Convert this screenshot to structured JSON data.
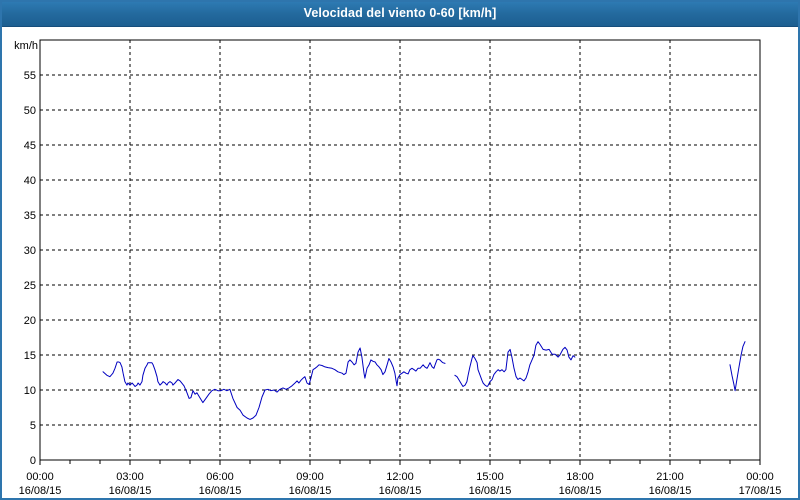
{
  "window": {
    "title": "Velocidad del viento 0-60 [km/h]"
  },
  "colors": {
    "titlebar_bg": "#1f6397",
    "titlebar_text": "#ffffff",
    "frame_border": "#2e75ad",
    "plot_border": "#000000",
    "grid": "#000000",
    "series_line": "#0000c0",
    "label_text": "#000000",
    "background": "#ffffff"
  },
  "chart_data": {
    "type": "line",
    "title": "Velocidad del viento 0-60 [km/h]",
    "ylabel": "km/h",
    "ylim": [
      0,
      60
    ],
    "ytick_step": 5,
    "ytick_labels": [
      "0",
      "5",
      "10",
      "15",
      "20",
      "25",
      "30",
      "35",
      "40",
      "45",
      "50",
      "55"
    ],
    "x_hours_range": [
      0,
      24
    ],
    "x_major_step_hours": 3,
    "x_minor_step_hours": 1,
    "x_tick_labels": [
      {
        "time": "00:00",
        "date": "16/08/15"
      },
      {
        "time": "03:00",
        "date": "16/08/15"
      },
      {
        "time": "06:00",
        "date": "16/08/15"
      },
      {
        "time": "09:00",
        "date": "16/08/15"
      },
      {
        "time": "12:00",
        "date": "16/08/15"
      },
      {
        "time": "15:00",
        "date": "16/08/15"
      },
      {
        "time": "18:00",
        "date": "16/08/15"
      },
      {
        "time": "21:00",
        "date": "16/08/15"
      },
      {
        "time": "00:00",
        "date": "17/08/15"
      }
    ],
    "grid": "dashed",
    "legend": "none",
    "series": [
      {
        "name": "Velocidad del viento",
        "color": "#0000c0",
        "points_format": [
          "hour_decimal",
          "km_per_h"
        ],
        "segments": [
          [
            [
              2.1,
              12.6
            ],
            [
              2.23,
              12.1
            ],
            [
              2.33,
              11.9
            ],
            [
              2.43,
              12.4
            ],
            [
              2.5,
              13.1
            ],
            [
              2.57,
              14.0
            ],
            [
              2.63,
              14.0
            ],
            [
              2.67,
              13.9
            ],
            [
              2.73,
              13.3
            ],
            [
              2.77,
              12.4
            ],
            [
              2.83,
              11.2
            ],
            [
              2.9,
              10.7
            ],
            [
              2.93,
              11.0
            ],
            [
              3.0,
              10.7
            ],
            [
              3.07,
              11.0
            ],
            [
              3.13,
              10.7
            ],
            [
              3.17,
              10.5
            ],
            [
              3.23,
              10.7
            ],
            [
              3.27,
              11.0
            ],
            [
              3.33,
              10.7
            ],
            [
              3.4,
              11.2
            ],
            [
              3.43,
              12.1
            ],
            [
              3.5,
              13.1
            ],
            [
              3.57,
              13.6
            ],
            [
              3.6,
              13.9
            ],
            [
              3.67,
              13.9
            ],
            [
              3.73,
              13.9
            ],
            [
              3.77,
              13.6
            ],
            [
              3.83,
              12.9
            ],
            [
              3.9,
              11.9
            ],
            [
              3.93,
              11.2
            ],
            [
              4.0,
              10.7
            ],
            [
              4.07,
              11.0
            ],
            [
              4.1,
              11.2
            ],
            [
              4.17,
              11.0
            ],
            [
              4.23,
              10.7
            ],
            [
              4.27,
              11.0
            ],
            [
              4.33,
              11.2
            ],
            [
              4.4,
              11.0
            ],
            [
              4.43,
              10.7
            ],
            [
              4.5,
              11.0
            ],
            [
              4.6,
              11.5
            ],
            [
              4.67,
              11.3
            ],
            [
              4.8,
              10.6
            ],
            [
              4.9,
              9.6
            ],
            [
              4.97,
              8.8
            ],
            [
              5.03,
              8.9
            ],
            [
              5.1,
              9.9
            ],
            [
              5.17,
              9.4
            ],
            [
              5.23,
              9.6
            ],
            [
              5.33,
              8.9
            ],
            [
              5.43,
              8.2
            ],
            [
              5.53,
              8.8
            ],
            [
              5.63,
              9.4
            ],
            [
              5.73,
              9.9
            ],
            [
              5.83,
              10.1
            ],
            [
              5.93,
              9.9
            ],
            [
              6.03,
              9.9
            ],
            [
              6.13,
              10.1
            ],
            [
              6.23,
              9.9
            ],
            [
              6.33,
              10.1
            ],
            [
              6.43,
              8.8
            ],
            [
              6.57,
              7.5
            ],
            [
              6.67,
              7.1
            ],
            [
              6.77,
              6.4
            ],
            [
              6.9,
              6.0
            ],
            [
              7.0,
              5.8
            ],
            [
              7.1,
              6.0
            ],
            [
              7.2,
              6.4
            ],
            [
              7.3,
              7.5
            ],
            [
              7.4,
              9.0
            ],
            [
              7.5,
              10.0
            ],
            [
              7.6,
              10.1
            ],
            [
              7.7,
              9.9
            ],
            [
              7.8,
              10.0
            ],
            [
              7.9,
              9.7
            ],
            [
              8.0,
              10.1
            ],
            [
              8.1,
              10.3
            ],
            [
              8.2,
              10.1
            ],
            [
              8.3,
              10.3
            ],
            [
              8.4,
              10.6
            ],
            [
              8.5,
              11.0
            ],
            [
              8.57,
              11.3
            ],
            [
              8.63,
              11.0
            ],
            [
              8.7,
              11.4
            ],
            [
              8.77,
              11.7
            ],
            [
              8.83,
              11.9
            ],
            [
              8.9,
              11.0
            ],
            [
              8.97,
              10.8
            ],
            [
              9.03,
              11.7
            ],
            [
              9.1,
              12.9
            ],
            [
              9.17,
              13.1
            ],
            [
              9.23,
              13.3
            ],
            [
              9.3,
              13.6
            ],
            [
              9.4,
              13.5
            ],
            [
              9.5,
              13.3
            ],
            [
              9.6,
              13.2
            ],
            [
              9.73,
              13.1
            ],
            [
              9.83,
              12.9
            ],
            [
              9.93,
              12.6
            ],
            [
              10.07,
              12.4
            ],
            [
              10.13,
              12.2
            ],
            [
              10.2,
              12.4
            ],
            [
              10.27,
              14.0
            ],
            [
              10.33,
              14.3
            ],
            [
              10.4,
              14.0
            ],
            [
              10.47,
              13.6
            ],
            [
              10.53,
              13.8
            ],
            [
              10.6,
              15.4
            ],
            [
              10.67,
              16.0
            ],
            [
              10.73,
              14.7
            ],
            [
              10.8,
              12.4
            ],
            [
              10.83,
              11.7
            ],
            [
              10.9,
              13.1
            ],
            [
              10.97,
              13.6
            ],
            [
              11.03,
              14.3
            ],
            [
              11.1,
              14.1
            ],
            [
              11.17,
              14.0
            ],
            [
              11.23,
              13.6
            ],
            [
              11.3,
              13.3
            ],
            [
              11.37,
              12.9
            ],
            [
              11.43,
              12.2
            ],
            [
              11.5,
              12.6
            ],
            [
              11.57,
              13.6
            ],
            [
              11.63,
              14.5
            ],
            [
              11.7,
              14.0
            ],
            [
              11.77,
              13.3
            ],
            [
              11.83,
              12.4
            ],
            [
              11.87,
              11.3
            ],
            [
              11.9,
              10.6
            ],
            [
              11.93,
              11.7
            ],
            [
              12.0,
              12.2
            ],
            [
              12.07,
              12.4
            ],
            [
              12.13,
              12.6
            ],
            [
              12.2,
              12.4
            ],
            [
              12.27,
              12.3
            ],
            [
              12.33,
              12.9
            ],
            [
              12.4,
              13.1
            ],
            [
              12.47,
              12.9
            ],
            [
              12.53,
              12.7
            ],
            [
              12.6,
              13.1
            ],
            [
              12.67,
              13.1
            ],
            [
              12.77,
              13.6
            ],
            [
              12.83,
              13.3
            ],
            [
              12.9,
              13.1
            ],
            [
              12.93,
              13.3
            ],
            [
              13.0,
              13.9
            ],
            [
              13.07,
              13.3
            ],
            [
              13.13,
              13.1
            ],
            [
              13.17,
              13.6
            ],
            [
              13.23,
              14.3
            ],
            [
              13.27,
              14.4
            ],
            [
              13.33,
              14.3
            ],
            [
              13.4,
              14.0
            ],
            [
              13.43,
              13.9
            ],
            [
              13.5,
              13.8
            ]
          ],
          [
            [
              13.83,
              12.1
            ],
            [
              13.9,
              11.9
            ],
            [
              13.93,
              11.7
            ],
            [
              14.0,
              11.2
            ],
            [
              14.07,
              10.7
            ],
            [
              14.1,
              10.5
            ],
            [
              14.17,
              10.7
            ],
            [
              14.23,
              11.2
            ],
            [
              14.27,
              12.1
            ],
            [
              14.33,
              13.3
            ],
            [
              14.4,
              14.5
            ],
            [
              14.43,
              14.9
            ],
            [
              14.5,
              14.5
            ],
            [
              14.57,
              13.9
            ],
            [
              14.6,
              12.9
            ],
            [
              14.67,
              12.1
            ],
            [
              14.73,
              11.4
            ],
            [
              14.77,
              11.0
            ],
            [
              14.83,
              10.7
            ],
            [
              14.9,
              10.5
            ],
            [
              14.93,
              10.6
            ],
            [
              15.0,
              11.2
            ],
            [
              15.07,
              11.5
            ],
            [
              15.13,
              12.2
            ],
            [
              15.2,
              12.6
            ],
            [
              15.27,
              12.9
            ],
            [
              15.33,
              12.7
            ],
            [
              15.4,
              12.9
            ],
            [
              15.47,
              12.6
            ],
            [
              15.53,
              12.9
            ],
            [
              15.6,
              15.4
            ],
            [
              15.67,
              15.8
            ],
            [
              15.73,
              14.7
            ],
            [
              15.8,
              13.1
            ],
            [
              15.87,
              11.9
            ],
            [
              15.93,
              11.5
            ],
            [
              16.0,
              11.7
            ],
            [
              16.07,
              11.5
            ],
            [
              16.13,
              11.3
            ],
            [
              16.2,
              11.7
            ],
            [
              16.27,
              12.6
            ],
            [
              16.33,
              13.6
            ],
            [
              16.4,
              14.3
            ],
            [
              16.47,
              15.0
            ],
            [
              16.53,
              16.4
            ],
            [
              16.6,
              16.9
            ],
            [
              16.67,
              16.5
            ],
            [
              16.77,
              15.8
            ],
            [
              16.87,
              15.7
            ],
            [
              16.97,
              15.8
            ],
            [
              17.07,
              15.1
            ],
            [
              17.17,
              15.1
            ],
            [
              17.27,
              14.7
            ],
            [
              17.33,
              15.0
            ],
            [
              17.43,
              15.8
            ],
            [
              17.5,
              16.1
            ],
            [
              17.57,
              15.7
            ],
            [
              17.63,
              14.7
            ],
            [
              17.7,
              14.3
            ],
            [
              17.77,
              14.9
            ],
            [
              17.83,
              14.7
            ]
          ],
          [
            [
              23.0,
              13.6
            ],
            [
              23.07,
              12.0
            ],
            [
              23.13,
              10.8
            ],
            [
              23.17,
              9.9
            ],
            [
              23.23,
              11.5
            ],
            [
              23.3,
              13.3
            ],
            [
              23.37,
              15.0
            ],
            [
              23.43,
              16.2
            ],
            [
              23.5,
              16.9
            ]
          ]
        ]
      }
    ]
  }
}
